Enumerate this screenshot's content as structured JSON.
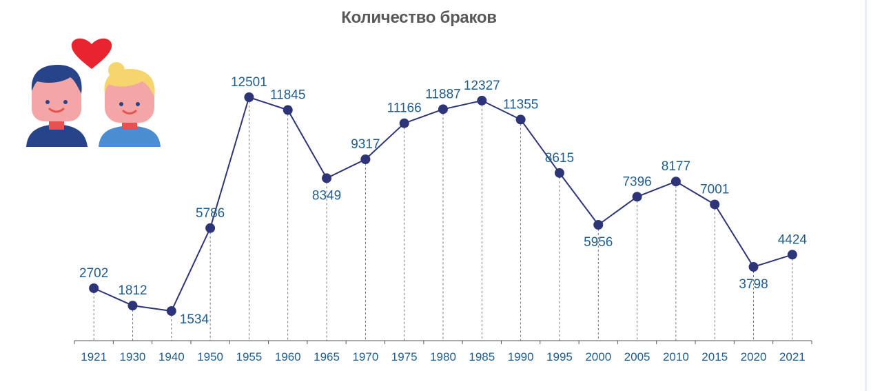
{
  "colors": {
    "line": "#2d3478",
    "point": "#2d3478",
    "label": "#1f5c8f",
    "axis": "#555555",
    "dash": "#555555",
    "heart": "#e8252f",
    "man_hair": "#27438a",
    "man_shirt": "#27438a",
    "woman_hair": "#f7d56e",
    "woman_shirt": "#4a8ed1",
    "skin": "#f4a6a6",
    "neck": "#e6504f"
  },
  "illustration": {
    "icon": "couple-with-heart-icon"
  },
  "chart_data": {
    "type": "line",
    "title": "Количество браков",
    "xlabel": "",
    "ylabel": "",
    "categories": [
      "1921",
      "1930",
      "1940",
      "1950",
      "1955",
      "1960",
      "1965",
      "1970",
      "1975",
      "1980",
      "1985",
      "1990",
      "1995",
      "2000",
      "2005",
      "2010",
      "2015",
      "2020",
      "2021"
    ],
    "series": [
      {
        "values": [
          2702,
          1812,
          1534,
          5786,
          12501,
          11845,
          8349,
          9317,
          11166,
          11887,
          12327,
          11355,
          8615,
          5956,
          7396,
          8177,
          7001,
          3798,
          4424
        ]
      }
    ],
    "label_positions": [
      "above",
      "above",
      "below",
      "above",
      "above",
      "above",
      "below",
      "above",
      "above",
      "above",
      "above",
      "above",
      "above",
      "below",
      "above",
      "above",
      "above",
      "below",
      "above"
    ],
    "drop_lines": true,
    "grid": false,
    "legend": "none"
  }
}
